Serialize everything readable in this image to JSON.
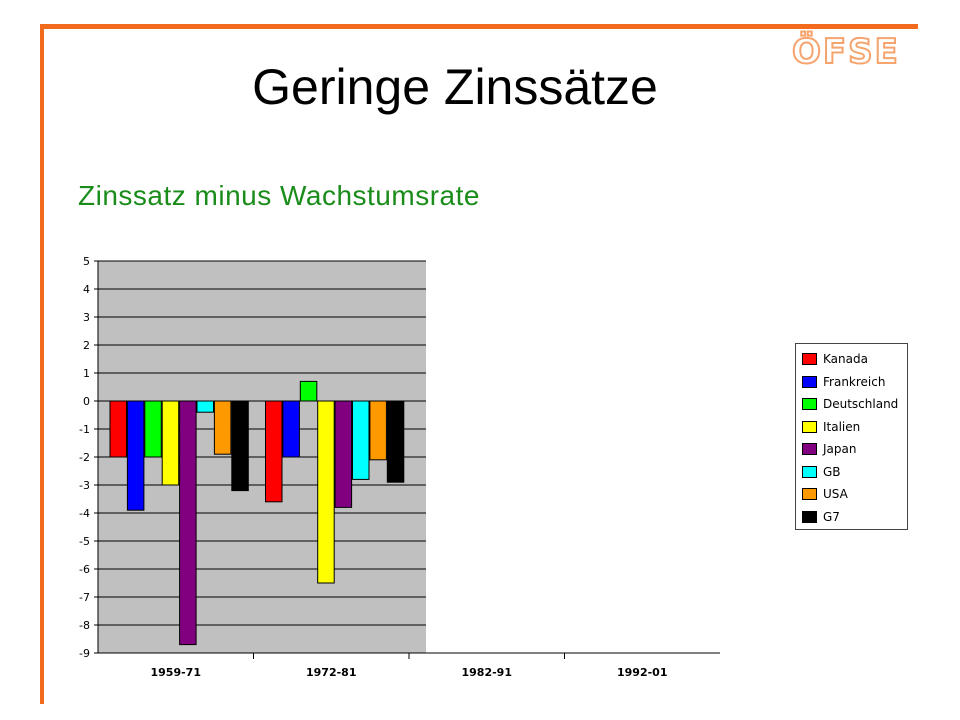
{
  "header": {
    "title": "Geringe Zinssätze",
    "logo": "ÖFSE"
  },
  "chart_data": {
    "type": "bar",
    "title": "Zinssatz minus Wachstumsrate",
    "categories": [
      "1959-71",
      "1972-81",
      "1982-91",
      "1992-01"
    ],
    "ylim": [
      -9,
      5
    ],
    "yticks": [
      5,
      4,
      3,
      2,
      1,
      0,
      -1,
      -2,
      -3,
      -4,
      -5,
      -6,
      -7,
      -8,
      -9
    ],
    "grid": true,
    "legend_position": "right",
    "series": [
      {
        "name": "Kanada",
        "color": "#ff0000",
        "values": [
          -2.0,
          -3.6,
          null,
          null
        ]
      },
      {
        "name": "Frankreich",
        "color": "#0000ff",
        "values": [
          -3.9,
          -2.0,
          null,
          null
        ]
      },
      {
        "name": "Deutschland",
        "color": "#00ff00",
        "values": [
          -2.0,
          0.7,
          null,
          null
        ]
      },
      {
        "name": "Italien",
        "color": "#ffff00",
        "values": [
          -3.0,
          -6.5,
          null,
          null
        ]
      },
      {
        "name": "Japan",
        "color": "#800080",
        "values": [
          -8.7,
          -3.8,
          null,
          null
        ]
      },
      {
        "name": "GB",
        "color": "#00ffff",
        "values": [
          -0.4,
          -2.8,
          null,
          null
        ]
      },
      {
        "name": "USA",
        "color": "#ff9900",
        "values": [
          -1.9,
          -2.1,
          null,
          null
        ]
      },
      {
        "name": "G7",
        "color": "#000000",
        "values": [
          -3.2,
          -2.9,
          null,
          null
        ]
      }
    ]
  }
}
